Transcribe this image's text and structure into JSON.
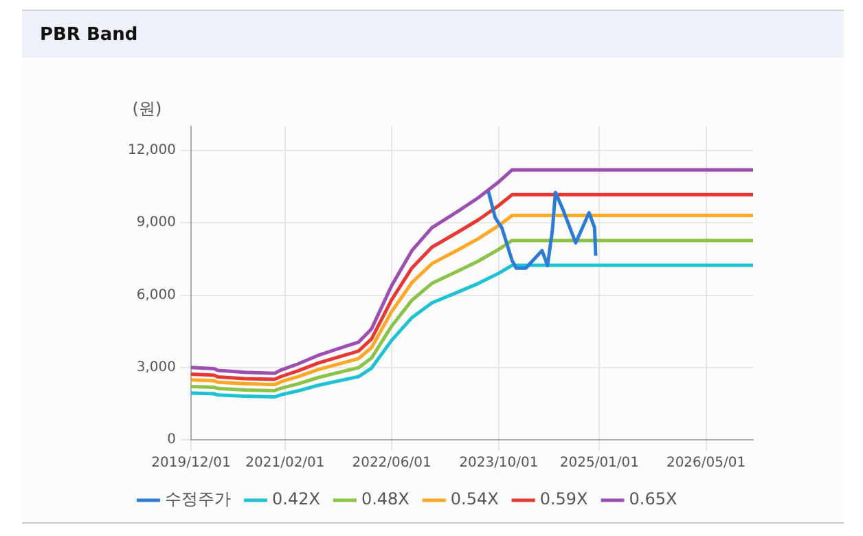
{
  "chart_data": {
    "type": "line",
    "title": "PBR Band",
    "ylabel": "(원)",
    "x": [
      "2019-12-01",
      "2020-03-15",
      "2020-04-01",
      "2020-08-01",
      "2020-12-15",
      "2021-01-15",
      "2021-04-01",
      "2021-07-01",
      "2021-10-01",
      "2022-01-01",
      "2022-03-01",
      "2022-06-01",
      "2022-09-01",
      "2022-12-01",
      "2023-04-01",
      "2023-07-01",
      "2023-10-01",
      "2023-12-01",
      "2026-12-01"
    ],
    "series": [
      {
        "name": "수정주가",
        "color": "#2e7bd6",
        "x": [
          "2023-08-15",
          "2023-09-15",
          "2023-10-15",
          "2023-12-01",
          "2023-12-20",
          "2024-02-01",
          "2024-04-15",
          "2024-05-10",
          "2024-06-01",
          "2024-06-15",
          "2024-07-20",
          "2024-09-15",
          "2024-11-15",
          "2024-12-10",
          "2024-12-15"
        ],
        "values": [
          10300,
          9210,
          8800,
          7430,
          7120,
          7120,
          7850,
          7230,
          8690,
          10260,
          9530,
          8170,
          9420,
          8800,
          7640
        ]
      },
      {
        "name": "0.42X",
        "color": "#1fc1d3",
        "values": [
          1940,
          1910,
          1860,
          1810,
          1780,
          1870,
          2030,
          2260,
          2440,
          2620,
          2970,
          4130,
          5070,
          5680,
          6140,
          6490,
          6910,
          7240,
          7240
        ]
      },
      {
        "name": "0.48X",
        "color": "#8bc34a",
        "values": [
          2210,
          2180,
          2130,
          2070,
          2040,
          2140,
          2320,
          2580,
          2790,
          2990,
          3390,
          4720,
          5790,
          6490,
          7010,
          7420,
          7900,
          8270,
          8270
        ]
      },
      {
        "name": "0.54X",
        "color": "#ffa726",
        "values": [
          2490,
          2450,
          2390,
          2330,
          2290,
          2410,
          2620,
          2910,
          3140,
          3370,
          3820,
          5320,
          6520,
          7310,
          7890,
          8350,
          8890,
          9310,
          9310
        ]
      },
      {
        "name": "0.59X",
        "color": "#e53935",
        "values": [
          2720,
          2680,
          2610,
          2540,
          2510,
          2630,
          2860,
          3180,
          3430,
          3680,
          4180,
          5810,
          7130,
          7990,
          8630,
          9130,
          9720,
          10170,
          10170
        ]
      },
      {
        "name": "0.65X",
        "color": "#9c4fb0",
        "values": [
          3000,
          2950,
          2880,
          2800,
          2760,
          2900,
          3150,
          3500,
          3780,
          4050,
          4600,
          6400,
          7850,
          8800,
          9500,
          10050,
          10700,
          11200,
          11200
        ]
      }
    ],
    "xlim": [
      "2019-12-01",
      "2026-12-01"
    ],
    "xticks": [
      {
        "value": "2019-12-01",
        "label": "2019/12/01"
      },
      {
        "value": "2021-02-01",
        "label": "2021/02/01"
      },
      {
        "value": "2022-06-01",
        "label": "2022/06/01"
      },
      {
        "value": "2023-10-01",
        "label": "2023/10/01"
      },
      {
        "value": "2025-01-01",
        "label": "2025/01/01"
      },
      {
        "value": "2026-05-01",
        "label": "2026/05/01"
      }
    ],
    "ylim": [
      0,
      13000
    ],
    "yticks": [
      {
        "value": 0,
        "label": "0"
      },
      {
        "value": 3000,
        "label": "3,000"
      },
      {
        "value": 6000,
        "label": "6,000"
      },
      {
        "value": 9000,
        "label": "9,000"
      },
      {
        "value": 12000,
        "label": "12,000"
      }
    ],
    "grid": true,
    "legend": "bottom",
    "marker": "none",
    "line_style": "solid"
  }
}
